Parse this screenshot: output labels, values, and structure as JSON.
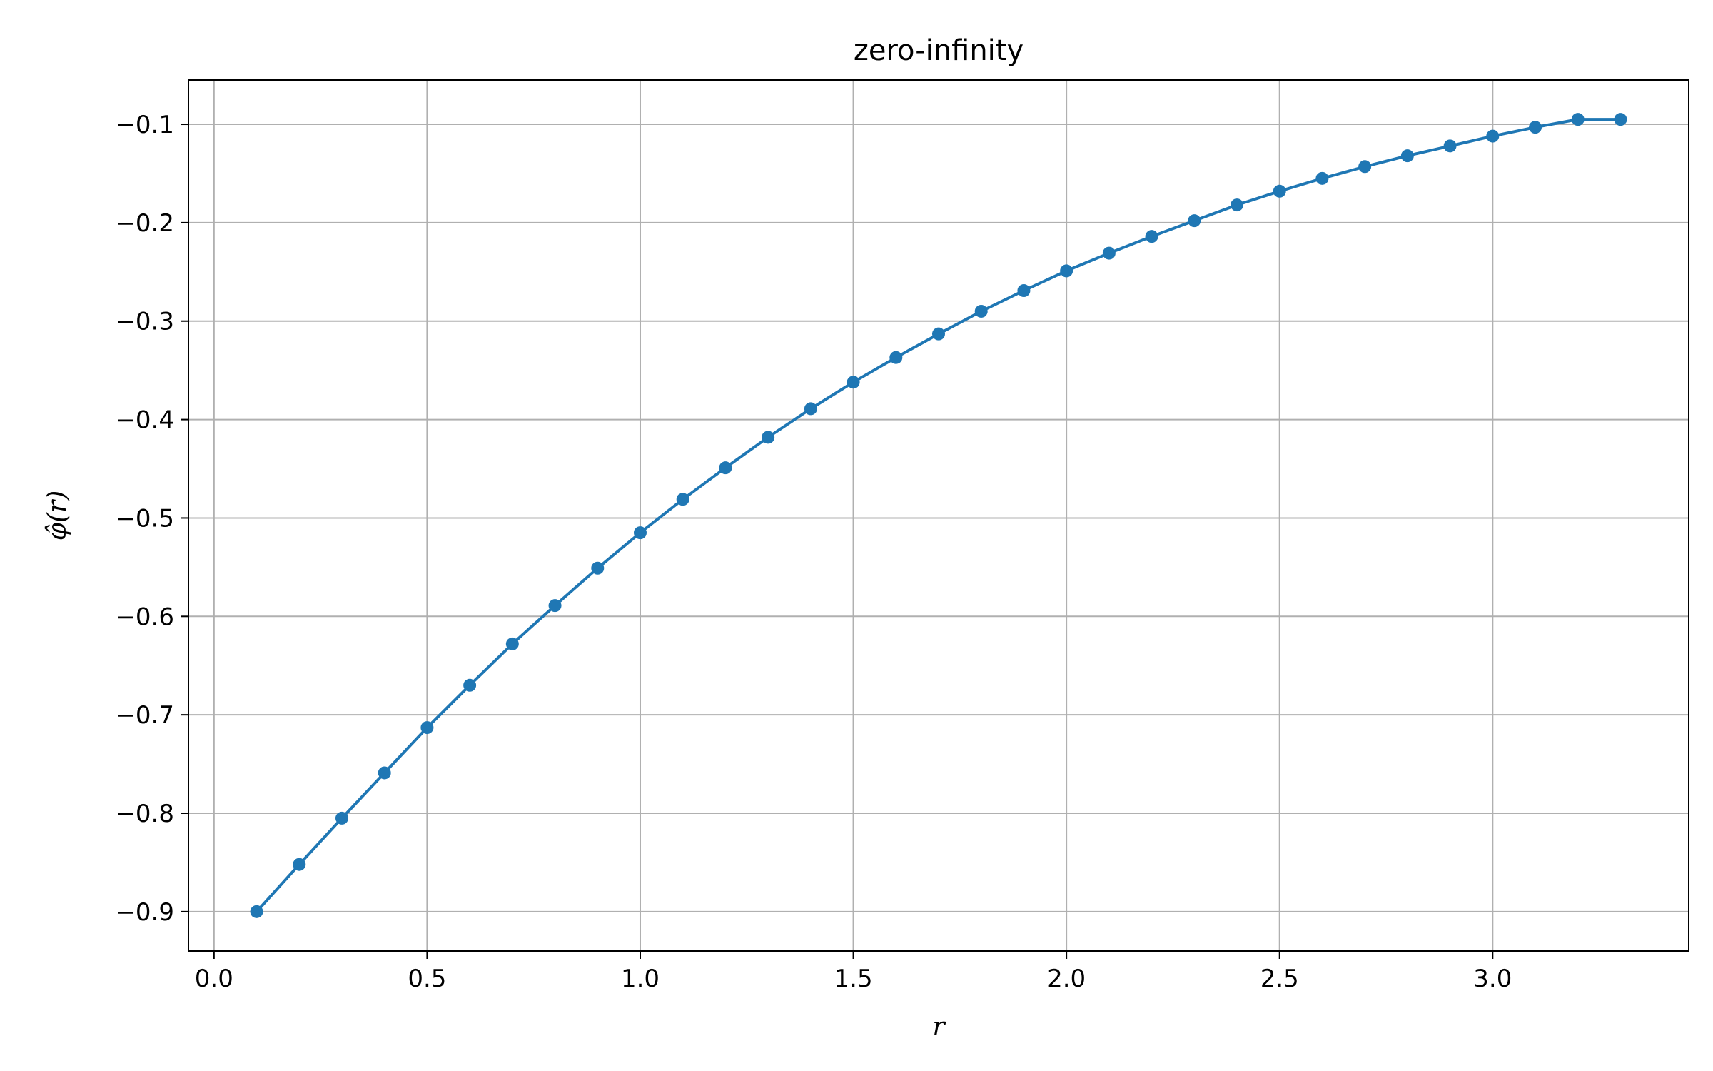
{
  "chart_data": {
    "type": "line",
    "title": "zero-infinity",
    "xlabel": "r",
    "ylabel": "φ̂(r)",
    "xlim": [
      -0.06,
      3.46
    ],
    "ylim": [
      -0.94,
      -0.055
    ],
    "grid": true,
    "legend": "none",
    "x_ticks": [
      0.0,
      0.5,
      1.0,
      1.5,
      2.0,
      2.5,
      3.0
    ],
    "x_tick_labels": [
      "0.0",
      "0.5",
      "1.0",
      "1.5",
      "2.0",
      "2.5",
      "3.0"
    ],
    "y_ticks": [
      -0.1,
      -0.2,
      -0.3,
      -0.4,
      -0.5,
      -0.6,
      -0.7,
      -0.8,
      -0.9
    ],
    "y_tick_labels": [
      "−0.1",
      "−0.2",
      "−0.3",
      "−0.4",
      "−0.5",
      "−0.6",
      "−0.7",
      "−0.8",
      "−0.9"
    ],
    "colors": {
      "series": "#1f77b4",
      "grid": "#b0b0b0",
      "axes": "#000000"
    },
    "series": [
      {
        "marker": "circle",
        "x": [
          0.1,
          0.2,
          0.3,
          0.4,
          0.5,
          0.6,
          0.7,
          0.8,
          0.9,
          1.0,
          1.1,
          1.2,
          1.3,
          1.4,
          1.5,
          1.6,
          1.7,
          1.8,
          1.9,
          2.0,
          2.1,
          2.2,
          2.3,
          2.4,
          2.5,
          2.6,
          2.7,
          2.8,
          2.9,
          3.0,
          3.1,
          3.2,
          3.3
        ],
        "y": [
          -0.9,
          -0.852,
          -0.805,
          -0.759,
          -0.713,
          -0.67,
          -0.628,
          -0.589,
          -0.551,
          -0.515,
          -0.481,
          -0.449,
          -0.418,
          -0.389,
          -0.362,
          -0.337,
          -0.313,
          -0.29,
          -0.269,
          -0.249,
          -0.231,
          -0.214,
          -0.198,
          -0.182,
          -0.168,
          -0.155,
          -0.143,
          -0.132,
          -0.122,
          -0.112,
          -0.103,
          -0.095,
          -0.095
        ]
      }
    ]
  }
}
